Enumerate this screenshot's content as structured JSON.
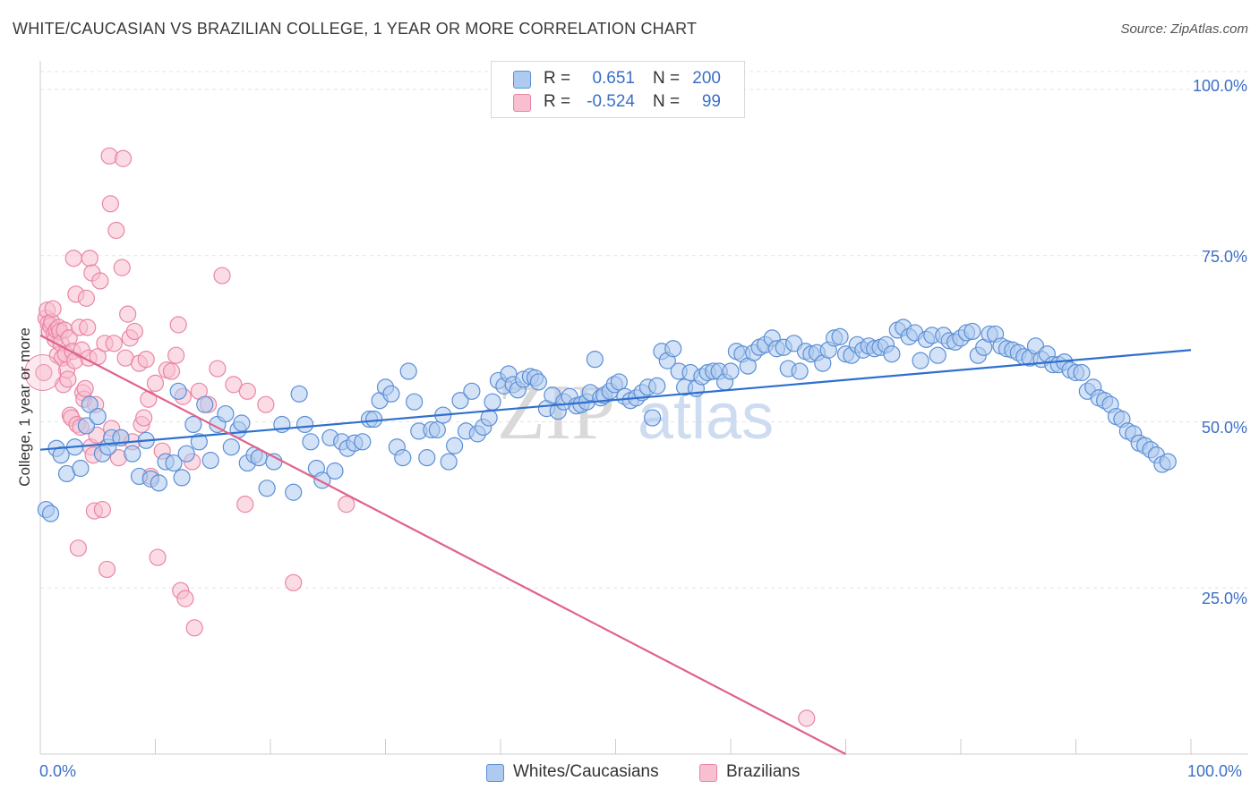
{
  "title": "WHITE/CAUCASIAN VS BRAZILIAN COLLEGE, 1 YEAR OR MORE CORRELATION CHART",
  "source": "Source: ZipAtlas.com",
  "watermark": "ZIPatlas",
  "colors": {
    "blue_fill": "#aecbef",
    "blue_stroke": "#5b8fd6",
    "blue_line": "#2f6fce",
    "pink_fill": "#f7bfd0",
    "pink_stroke": "#ea85a6",
    "pink_line": "#e0628c",
    "tick_text": "#3b6fc6",
    "grid": "#e3e3e3"
  },
  "legend": {
    "rows": [
      {
        "r_label": "R =",
        "r_value": "0.651",
        "n_label": "N =",
        "n_value": "200"
      },
      {
        "r_label": "R =",
        "r_value": "-0.524",
        "n_label": "N =",
        "n_value": "99"
      }
    ]
  },
  "bottom_legend": {
    "series1": "Whites/Caucasians",
    "series2": "Brazilians"
  },
  "chart_data": {
    "type": "scatter",
    "title": "WHITE/CAUCASIAN VS BRAZILIAN COLLEGE, 1 YEAR OR MORE CORRELATION CHART",
    "xlabel": "",
    "ylabel": "College, 1 year or more",
    "xlim": [
      0,
      100
    ],
    "ylim": [
      0,
      100
    ],
    "x_tick_labels": [
      "0.0%",
      "100.0%"
    ],
    "y_tick_labels": [
      "100.0%",
      "75.0%",
      "50.0%",
      "25.0%"
    ],
    "y_ticks": [
      100,
      75,
      50,
      25
    ],
    "grid": "horizontal dashed",
    "legend_position": "top-center",
    "series": [
      {
        "name": "Whites/Caucasians",
        "r": 0.651,
        "n": 200,
        "trend": [
          [
            0,
            45.8
          ],
          [
            100,
            60.8
          ]
        ],
        "points": [
          [
            0.5,
            36.8
          ],
          [
            0.9,
            36.2
          ],
          [
            1.4,
            46.0
          ],
          [
            1.8,
            45.0
          ],
          [
            2.3,
            42.2
          ],
          [
            3.0,
            46.2
          ],
          [
            3.5,
            43.0
          ],
          [
            4.0,
            49.4
          ],
          [
            4.3,
            52.6
          ],
          [
            5.0,
            50.8
          ],
          [
            5.4,
            45.2
          ],
          [
            5.9,
            46.2
          ],
          [
            6.2,
            47.6
          ],
          [
            7.0,
            47.6
          ],
          [
            8.0,
            45.2
          ],
          [
            8.6,
            41.8
          ],
          [
            9.2,
            47.2
          ],
          [
            9.6,
            41.4
          ],
          [
            10.3,
            40.8
          ],
          [
            10.9,
            44.0
          ],
          [
            11.6,
            43.8
          ],
          [
            12.0,
            54.6
          ],
          [
            12.3,
            41.6
          ],
          [
            12.7,
            45.2
          ],
          [
            13.3,
            49.6
          ],
          [
            13.8,
            47.0
          ],
          [
            14.3,
            52.6
          ],
          [
            14.8,
            44.2
          ],
          [
            15.4,
            49.6
          ],
          [
            16.1,
            51.2
          ],
          [
            16.6,
            46.2
          ],
          [
            17.2,
            48.8
          ],
          [
            17.5,
            49.8
          ],
          [
            18.0,
            43.8
          ],
          [
            18.6,
            45.0
          ],
          [
            19.0,
            44.6
          ],
          [
            19.7,
            40.0
          ],
          [
            20.3,
            44.0
          ],
          [
            21.0,
            49.6
          ],
          [
            22.0,
            39.4
          ],
          [
            22.5,
            54.2
          ],
          [
            23.0,
            49.6
          ],
          [
            23.5,
            47.0
          ],
          [
            24.0,
            43.0
          ],
          [
            24.5,
            41.2
          ],
          [
            25.2,
            47.6
          ],
          [
            25.6,
            42.6
          ],
          [
            26.2,
            47.0
          ],
          [
            26.7,
            46.0
          ],
          [
            27.3,
            46.8
          ],
          [
            28.0,
            47.0
          ],
          [
            28.6,
            50.4
          ],
          [
            29.0,
            50.4
          ],
          [
            29.5,
            53.2
          ],
          [
            30.0,
            55.2
          ],
          [
            30.5,
            54.2
          ],
          [
            31.0,
            46.2
          ],
          [
            31.5,
            44.6
          ],
          [
            32.0,
            57.6
          ],
          [
            32.5,
            53.0
          ],
          [
            32.9,
            48.6
          ],
          [
            33.6,
            44.6
          ],
          [
            34.0,
            48.8
          ],
          [
            34.5,
            48.8
          ],
          [
            35.0,
            51.0
          ],
          [
            35.5,
            44.0
          ],
          [
            36.0,
            46.4
          ],
          [
            36.5,
            53.2
          ],
          [
            37.0,
            48.6
          ],
          [
            37.5,
            54.6
          ],
          [
            38.0,
            48.2
          ],
          [
            38.5,
            49.2
          ],
          [
            39.0,
            50.6
          ],
          [
            39.3,
            53.0
          ],
          [
            39.8,
            56.2
          ],
          [
            40.3,
            55.4
          ],
          [
            40.7,
            57.2
          ],
          [
            41.1,
            55.6
          ],
          [
            41.5,
            54.8
          ],
          [
            42.0,
            56.4
          ],
          [
            42.6,
            56.8
          ],
          [
            43.0,
            56.6
          ],
          [
            43.3,
            56.0
          ],
          [
            44.0,
            52.0
          ],
          [
            44.5,
            54.0
          ],
          [
            45.0,
            51.6
          ],
          [
            45.5,
            53.0
          ],
          [
            46.0,
            53.8
          ],
          [
            46.6,
            52.4
          ],
          [
            47.0,
            52.6
          ],
          [
            47.5,
            53.0
          ],
          [
            47.8,
            54.4
          ],
          [
            48.2,
            59.4
          ],
          [
            48.7,
            53.6
          ],
          [
            49.0,
            54.0
          ],
          [
            49.5,
            54.6
          ],
          [
            49.9,
            55.6
          ],
          [
            50.3,
            56.0
          ],
          [
            50.8,
            53.8
          ],
          [
            51.3,
            53.2
          ],
          [
            51.8,
            53.6
          ],
          [
            52.3,
            54.4
          ],
          [
            52.8,
            55.2
          ],
          [
            53.2,
            50.6
          ],
          [
            53.6,
            55.4
          ],
          [
            54.0,
            60.6
          ],
          [
            54.5,
            59.2
          ],
          [
            55.0,
            61.0
          ],
          [
            55.5,
            57.6
          ],
          [
            56.0,
            55.2
          ],
          [
            56.5,
            57.4
          ],
          [
            57.0,
            55.0
          ],
          [
            57.5,
            56.8
          ],
          [
            58.0,
            57.4
          ],
          [
            58.5,
            57.6
          ],
          [
            59.0,
            57.6
          ],
          [
            59.5,
            56.0
          ],
          [
            60.0,
            57.6
          ],
          [
            60.5,
            60.6
          ],
          [
            61.0,
            60.2
          ],
          [
            61.5,
            58.4
          ],
          [
            62.0,
            60.4
          ],
          [
            62.5,
            61.2
          ],
          [
            63.0,
            61.6
          ],
          [
            63.6,
            62.6
          ],
          [
            64.0,
            61.0
          ],
          [
            64.6,
            61.2
          ],
          [
            65.0,
            58.0
          ],
          [
            65.5,
            61.8
          ],
          [
            66.0,
            57.6
          ],
          [
            66.5,
            60.6
          ],
          [
            67.0,
            60.2
          ],
          [
            67.5,
            60.4
          ],
          [
            68.0,
            58.8
          ],
          [
            68.5,
            60.8
          ],
          [
            69.0,
            62.6
          ],
          [
            69.5,
            62.8
          ],
          [
            70.0,
            60.2
          ],
          [
            70.5,
            60.0
          ],
          [
            71.0,
            61.6
          ],
          [
            71.5,
            60.8
          ],
          [
            72.0,
            61.4
          ],
          [
            72.5,
            61.0
          ],
          [
            73.0,
            61.2
          ],
          [
            73.5,
            61.6
          ],
          [
            74.0,
            60.2
          ],
          [
            74.5,
            63.8
          ],
          [
            75.0,
            64.2
          ],
          [
            75.5,
            62.8
          ],
          [
            76.0,
            63.4
          ],
          [
            76.5,
            59.2
          ],
          [
            77.0,
            62.4
          ],
          [
            77.5,
            63.0
          ],
          [
            78.0,
            60.0
          ],
          [
            78.5,
            63.0
          ],
          [
            79.0,
            62.2
          ],
          [
            79.5,
            62.0
          ],
          [
            80.0,
            62.6
          ],
          [
            80.5,
            63.4
          ],
          [
            81.0,
            63.6
          ],
          [
            81.5,
            60.0
          ],
          [
            82.0,
            61.2
          ],
          [
            82.5,
            63.2
          ],
          [
            83.0,
            63.2
          ],
          [
            83.5,
            61.4
          ],
          [
            84.0,
            61.0
          ],
          [
            84.5,
            60.8
          ],
          [
            85.0,
            60.4
          ],
          [
            85.5,
            59.8
          ],
          [
            86.0,
            59.6
          ],
          [
            86.5,
            61.4
          ],
          [
            87.0,
            59.4
          ],
          [
            87.5,
            60.2
          ],
          [
            88.0,
            58.6
          ],
          [
            88.5,
            58.6
          ],
          [
            89.0,
            59.0
          ],
          [
            89.5,
            57.8
          ],
          [
            90.0,
            57.4
          ],
          [
            90.5,
            57.4
          ],
          [
            91.0,
            54.6
          ],
          [
            91.5,
            55.2
          ],
          [
            92.0,
            53.6
          ],
          [
            92.5,
            53.2
          ],
          [
            93.0,
            52.6
          ],
          [
            93.5,
            50.8
          ],
          [
            94.0,
            50.4
          ],
          [
            94.5,
            48.6
          ],
          [
            95.0,
            48.2
          ],
          [
            95.5,
            46.8
          ],
          [
            96.0,
            46.4
          ],
          [
            96.5,
            45.8
          ],
          [
            97.0,
            45.0
          ],
          [
            97.5,
            43.6
          ],
          [
            98.0,
            44.0
          ]
        ]
      },
      {
        "name": "Brazilians",
        "r": -0.524,
        "n": 99,
        "trend": [
          [
            0,
            63.0
          ],
          [
            70,
            0
          ]
        ],
        "points": [
          [
            0.3,
            57.4
          ],
          [
            0.5,
            65.6
          ],
          [
            0.6,
            66.8
          ],
          [
            0.7,
            64.8
          ],
          [
            0.8,
            63.6
          ],
          [
            0.9,
            64.4
          ],
          [
            1.0,
            65.0
          ],
          [
            1.1,
            67.0
          ],
          [
            1.2,
            63.2
          ],
          [
            1.3,
            62.4
          ],
          [
            1.4,
            63.8
          ],
          [
            1.5,
            60.0
          ],
          [
            1.6,
            64.2
          ],
          [
            1.7,
            63.6
          ],
          [
            1.8,
            61.8
          ],
          [
            1.9,
            59.6
          ],
          [
            2.0,
            55.6
          ],
          [
            2.1,
            63.8
          ],
          [
            2.2,
            60.2
          ],
          [
            2.3,
            57.8
          ],
          [
            2.4,
            56.4
          ],
          [
            2.5,
            62.6
          ],
          [
            2.6,
            51.0
          ],
          [
            2.7,
            50.6
          ],
          [
            2.8,
            60.6
          ],
          [
            2.9,
            74.6
          ],
          [
            3.0,
            59.2
          ],
          [
            3.1,
            69.2
          ],
          [
            3.2,
            49.6
          ],
          [
            3.3,
            31.0
          ],
          [
            3.4,
            64.2
          ],
          [
            3.5,
            49.2
          ],
          [
            3.6,
            60.8
          ],
          [
            3.7,
            54.4
          ],
          [
            3.8,
            53.4
          ],
          [
            3.9,
            55.0
          ],
          [
            4.0,
            68.6
          ],
          [
            4.1,
            64.2
          ],
          [
            4.2,
            59.6
          ],
          [
            4.3,
            74.6
          ],
          [
            4.4,
            46.2
          ],
          [
            4.5,
            72.4
          ],
          [
            4.6,
            45.0
          ],
          [
            4.7,
            36.6
          ],
          [
            4.8,
            52.6
          ],
          [
            4.9,
            48.0
          ],
          [
            5.0,
            59.8
          ],
          [
            5.2,
            71.2
          ],
          [
            5.4,
            36.8
          ],
          [
            5.6,
            61.8
          ],
          [
            5.8,
            27.8
          ],
          [
            6.0,
            90.0
          ],
          [
            6.1,
            82.8
          ],
          [
            6.2,
            49.0
          ],
          [
            6.4,
            61.8
          ],
          [
            6.6,
            78.8
          ],
          [
            6.8,
            44.6
          ],
          [
            7.0,
            47.6
          ],
          [
            7.1,
            73.2
          ],
          [
            7.2,
            89.6
          ],
          [
            7.4,
            59.6
          ],
          [
            7.6,
            66.2
          ],
          [
            7.8,
            62.6
          ],
          [
            8.0,
            47.0
          ],
          [
            8.2,
            63.6
          ],
          [
            8.6,
            58.8
          ],
          [
            8.8,
            49.6
          ],
          [
            9.0,
            50.6
          ],
          [
            9.2,
            59.4
          ],
          [
            9.4,
            53.4
          ],
          [
            9.6,
            41.8
          ],
          [
            10.0,
            55.8
          ],
          [
            10.2,
            29.6
          ],
          [
            10.6,
            45.6
          ],
          [
            11.0,
            57.8
          ],
          [
            11.4,
            57.6
          ],
          [
            11.8,
            60.0
          ],
          [
            12.0,
            64.6
          ],
          [
            12.2,
            24.6
          ],
          [
            12.4,
            53.8
          ],
          [
            12.6,
            23.4
          ],
          [
            13.2,
            44.0
          ],
          [
            13.4,
            19.0
          ],
          [
            13.8,
            54.6
          ],
          [
            14.6,
            52.6
          ],
          [
            15.4,
            58.0
          ],
          [
            15.8,
            72.0
          ],
          [
            16.8,
            55.6
          ],
          [
            17.8,
            37.6
          ],
          [
            18.0,
            54.6
          ],
          [
            19.6,
            52.6
          ],
          [
            22.0,
            25.8
          ],
          [
            26.6,
            37.6
          ],
          [
            66.6,
            5.4
          ]
        ]
      }
    ]
  }
}
